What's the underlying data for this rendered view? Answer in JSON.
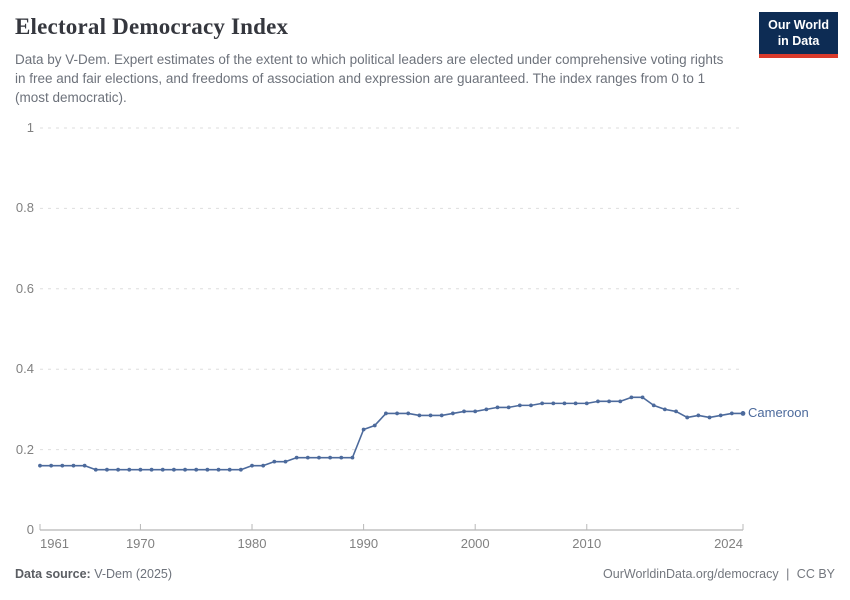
{
  "header": {
    "title": "Electoral Democracy Index",
    "subtitle": "Data by V-Dem. Expert estimates of the extent to which political leaders are elected under comprehensive voting rights in free and fair elections, and freedoms of association and expression are guaranteed. The index ranges from 0 to 1 (most democratic).",
    "logo": {
      "line1": "Our World",
      "line2": "in Data",
      "bg_color": "#0d2c54",
      "accent_color": "#d93a2b"
    }
  },
  "chart_data": {
    "type": "line",
    "title": "Electoral Democracy Index",
    "xlabel": "",
    "ylabel": "",
    "xlim": [
      1961,
      2024
    ],
    "ylim": [
      0,
      1
    ],
    "grid": "dashed-horizontal",
    "legend_position": "end-of-line-label",
    "x_axis": {
      "ticks": [
        1961,
        1970,
        1980,
        1990,
        2000,
        2010,
        2024
      ]
    },
    "y_axis": {
      "ticks": [
        0,
        0.2,
        0.4,
        0.6,
        0.8,
        1
      ]
    },
    "series": [
      {
        "name": "Cameroon",
        "color": "#4C6A9C",
        "x": [
          1961,
          1962,
          1963,
          1964,
          1965,
          1966,
          1967,
          1968,
          1969,
          1970,
          1971,
          1972,
          1973,
          1974,
          1975,
          1976,
          1977,
          1978,
          1979,
          1980,
          1981,
          1982,
          1983,
          1984,
          1985,
          1986,
          1987,
          1988,
          1989,
          1990,
          1991,
          1992,
          1993,
          1994,
          1995,
          1996,
          1997,
          1998,
          1999,
          2000,
          2001,
          2002,
          2003,
          2004,
          2005,
          2006,
          2007,
          2008,
          2009,
          2010,
          2011,
          2012,
          2013,
          2014,
          2015,
          2016,
          2017,
          2018,
          2019,
          2020,
          2021,
          2022,
          2023,
          2024
        ],
        "values": [
          0.16,
          0.16,
          0.16,
          0.16,
          0.16,
          0.15,
          0.15,
          0.15,
          0.15,
          0.15,
          0.15,
          0.15,
          0.15,
          0.15,
          0.15,
          0.15,
          0.15,
          0.15,
          0.15,
          0.16,
          0.16,
          0.17,
          0.17,
          0.18,
          0.18,
          0.18,
          0.18,
          0.18,
          0.18,
          0.25,
          0.26,
          0.29,
          0.29,
          0.29,
          0.285,
          0.285,
          0.285,
          0.29,
          0.295,
          0.295,
          0.3,
          0.305,
          0.305,
          0.31,
          0.31,
          0.315,
          0.315,
          0.315,
          0.315,
          0.315,
          0.32,
          0.32,
          0.32,
          0.33,
          0.33,
          0.31,
          0.3,
          0.295,
          0.28,
          0.285,
          0.28,
          0.285,
          0.29,
          0.29
        ]
      }
    ],
    "colors": {
      "gridline": "#dedede",
      "axis": "#a3a3a3",
      "tick_label": "#818181"
    }
  },
  "footer": {
    "source_label": "Data source:",
    "source_value": "V-Dem (2025)",
    "link": "OurWorldinData.org/democracy",
    "separator": "|",
    "license": "CC BY"
  }
}
